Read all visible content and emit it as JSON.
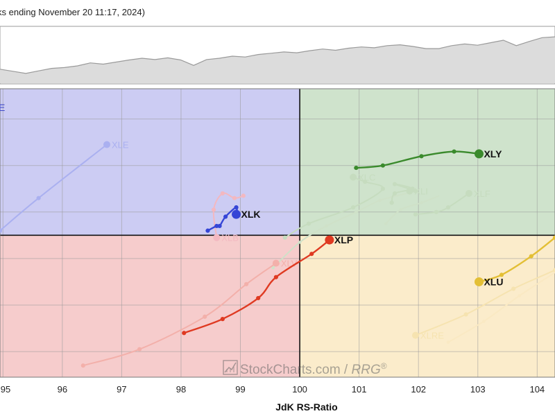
{
  "header": {
    "caption": "ks ending November 20 11:17, 2024)"
  },
  "watermark": {
    "brand": "StockCharts.com",
    "separator": " / ",
    "product": "RRG",
    "reg": "®"
  },
  "quadrant_colors": {
    "improving": "#ccccf3",
    "leading": "#cfe3cc",
    "lagging": "#f6cccc",
    "weakening": "#fbeccb"
  },
  "top_strip": {
    "values": [
      100,
      99.5,
      99,
      99.6,
      100.2,
      100.4,
      100.8,
      101.5,
      101.2,
      101.7,
      102.2,
      102.6,
      102.3,
      102.7,
      102.2,
      100.9,
      102.3,
      102.6,
      103.1,
      102.9,
      103.5,
      103.8,
      104.1,
      103.9,
      104.4,
      104.8,
      104.5,
      105.0,
      105.3,
      105.1,
      105.6,
      105.8,
      105.4,
      104.9,
      104.9,
      105.6,
      106.0,
      105.7,
      106.3,
      106.9,
      105.6,
      106.6,
      107.5,
      107.7
    ],
    "fill": "#dcdcdc",
    "stroke": "#9a9a9a"
  },
  "chart_data": {
    "type": "scatter",
    "title": "",
    "xlabel": "JdK RS-Ratio",
    "ylabel": "",
    "xlim": [
      94.95,
      104.3
    ],
    "ylim": [
      96.95,
      103.15
    ],
    "center": [
      100,
      100
    ],
    "x_ticks": [
      "95",
      "96",
      "97",
      "98",
      "99",
      "100",
      "101",
      "102",
      "103",
      "104"
    ],
    "x_tick_values": [
      95,
      96,
      97,
      98,
      99,
      100,
      101,
      102,
      103,
      104
    ],
    "y_grid": [
      97.5,
      98.5,
      99.5,
      100.5,
      101.5,
      102.5
    ],
    "grid": true,
    "series": [
      {
        "name": "XLE",
        "color": "#aab0f0",
        "faded": true,
        "x": [
          94.95,
          95.6,
          96.75
        ],
        "y": [
          100.1,
          100.8,
          101.95
        ]
      },
      {
        "name": "XLK",
        "color": "#3545d6",
        "faded": false,
        "x": [
          98.45,
          98.6,
          98.65,
          98.75,
          98.93,
          98.93
        ],
        "y": [
          100.1,
          100.2,
          100.2,
          100.4,
          100.6,
          100.45
        ]
      },
      {
        "name": "XLB",
        "color": "#f3b8c0",
        "faded": true,
        "x": [
          99.05,
          98.9,
          98.7,
          98.55,
          98.6
        ],
        "y": [
          100.85,
          100.8,
          100.9,
          100.55,
          99.95
        ]
      },
      {
        "name": "XLY",
        "color": "#3a8a2c",
        "faded": false,
        "x": [
          100.95,
          101.4,
          102.05,
          102.6,
          103.02
        ],
        "y": [
          101.45,
          101.5,
          101.7,
          101.8,
          101.75
        ]
      },
      {
        "name": "XLC",
        "color": "#c6dcbf",
        "faded": true,
        "x": [
          99.75,
          100.15,
          100.9,
          101.4,
          101.1,
          100.9
        ],
        "y": [
          99.95,
          100.25,
          100.6,
          101.0,
          101.15,
          101.25
        ]
      },
      {
        "name": "XLI",
        "color": "#c6dcbf",
        "faded": true,
        "x": [
          101.55,
          101.6,
          101.9,
          101.6,
          101.95,
          101.85
        ],
        "y": [
          100.7,
          100.9,
          101.0,
          101.1,
          100.95,
          100.95
        ]
      },
      {
        "name": "XLF",
        "color": "#c6dcbf",
        "faded": true,
        "x": [
          101.95,
          102.3,
          102.5,
          102.85
        ],
        "y": [
          100.45,
          100.5,
          100.6,
          100.9
        ]
      },
      {
        "name": "XLP",
        "color": "#df3a22",
        "faded": false,
        "x": [
          98.05,
          98.7,
          99.3,
          99.6,
          100.2,
          100.5
        ],
        "y": [
          97.9,
          98.2,
          98.65,
          99.1,
          99.6,
          99.9
        ]
      },
      {
        "name": "XLV",
        "color": "#f3b0aa",
        "faded": true,
        "x": [
          96.35,
          97.3,
          98.4,
          99.1,
          99.6
        ],
        "y": [
          97.2,
          97.55,
          98.25,
          98.95,
          99.4
        ]
      },
      {
        "name": "XLU",
        "color": "#e3bf35",
        "faded": false,
        "x": [
          104.3,
          103.9,
          103.4,
          103.02
        ],
        "y": [
          99.95,
          99.55,
          99.15,
          99.0
        ]
      },
      {
        "name": "XLRE",
        "color": "#f6e3b0",
        "faded": true,
        "x": [
          104.3,
          103.6,
          102.8,
          101.95
        ],
        "y": [
          99.25,
          98.85,
          98.3,
          97.85
        ]
      }
    ],
    "ghost_trails": [
      {
        "color": "#cfe1c8",
        "x": [
          99.55,
          100.0,
          100.45,
          100.95,
          101.35,
          101.8
        ],
        "y": [
          99.3,
          99.85,
          100.2,
          100.5,
          100.75,
          100.9
        ]
      },
      {
        "color": "#cfe1c8",
        "x": [
          101.45,
          101.7,
          102.05,
          102.35
        ],
        "y": [
          100.25,
          100.55,
          100.7,
          100.85
        ]
      },
      {
        "color": "#fae9c3",
        "x": [
          102.5,
          103.1,
          103.7,
          104.3
        ],
        "y": [
          97.7,
          98.15,
          98.7,
          99.2
        ]
      }
    ]
  }
}
